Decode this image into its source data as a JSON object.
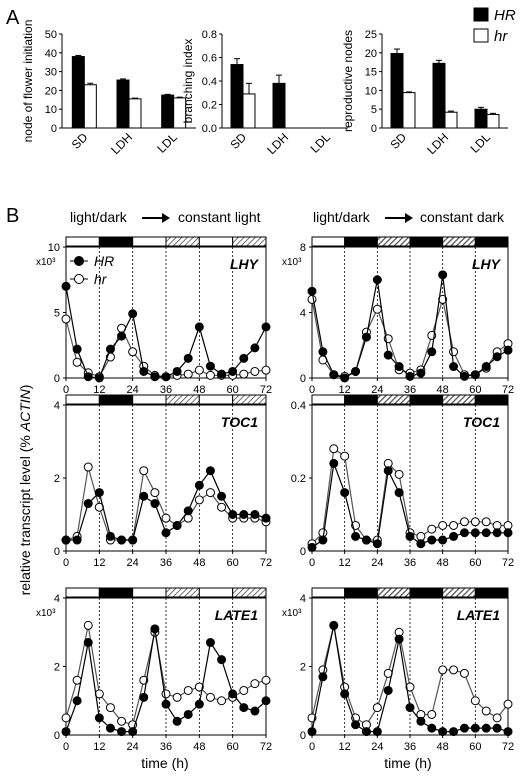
{
  "panel_labels": [
    "A",
    "B"
  ],
  "legend": [
    {
      "name": "HR",
      "color": "#000000"
    },
    {
      "name": "hr",
      "color": "#ffffff"
    }
  ],
  "line_legend": [
    "HR",
    "hr"
  ],
  "condition_titles": {
    "left_before": "light/dark",
    "left_after": "constant light",
    "right_before": "light/dark",
    "right_after": "constant dark"
  },
  "shared_ylabel_parts": [
    "relative transcript level (% ",
    "ACTIN",
    ")"
  ],
  "xlabel": "time (h)",
  "chart_data": [
    {
      "type": "bar",
      "ylabel": "node of flower initiation",
      "categories": [
        "SD",
        "LDH",
        "LDL"
      ],
      "ylim": [
        0,
        50
      ],
      "yticks": [
        "0",
        "10",
        "20",
        "30",
        "40",
        "50"
      ],
      "series": [
        {
          "name": "HR",
          "values": [
            38,
            25.5,
            17.5
          ],
          "err": [
            0.6,
            0.6,
            0.4
          ]
        },
        {
          "name": "hr",
          "values": [
            23,
            15.5,
            16
          ],
          "err": [
            0.8,
            0.4,
            0.4
          ]
        }
      ]
    },
    {
      "type": "bar",
      "ylabel": "branching index",
      "categories": [
        "SD",
        "LDH",
        "LDL"
      ],
      "ylim": [
        0,
        0.8
      ],
      "yticks": [
        "0.0",
        "0.2",
        "0.4",
        "0.6",
        "0.8"
      ],
      "series": [
        {
          "name": "HR",
          "values": [
            0.54,
            0.38,
            0
          ],
          "err": [
            0.05,
            0.07,
            0
          ]
        },
        {
          "name": "hr",
          "values": [
            0.29,
            0,
            0
          ],
          "err": [
            0.09,
            0,
            0
          ]
        }
      ]
    },
    {
      "type": "bar",
      "ylabel": "reproductive nodes",
      "categories": [
        "SD",
        "LDH",
        "LDL"
      ],
      "ylim": [
        0,
        25
      ],
      "yticks": [
        "0",
        "5",
        "10",
        "15",
        "20",
        "25"
      ],
      "series": [
        {
          "name": "HR",
          "values": [
            19.8,
            17.2,
            5.0
          ],
          "err": [
            1.2,
            0.8,
            0.5
          ]
        },
        {
          "name": "hr",
          "values": [
            9.4,
            4.2,
            3.6
          ],
          "err": [
            0.2,
            0.3,
            0.3
          ]
        }
      ]
    },
    {
      "type": "line",
      "title": "LHY",
      "multiplier": "x10³",
      "ylim": [
        0,
        10
      ],
      "yticks": [
        "0",
        "5",
        "10"
      ],
      "x": [
        0,
        4,
        8,
        12,
        16,
        20,
        24,
        28,
        32,
        36,
        40,
        44,
        48,
        52,
        56,
        60,
        64,
        68,
        72
      ],
      "xticks": [
        "0",
        "12",
        "24",
        "36",
        "48",
        "60",
        "72"
      ],
      "photoperiod": [
        "light",
        "dark",
        "light",
        "subjective-dark",
        "light",
        "subjective-dark"
      ],
      "series": [
        {
          "name": "HR",
          "values": [
            7.0,
            2.2,
            0.1,
            0.0,
            2.2,
            3.2,
            4.9,
            0.5,
            0.1,
            0.1,
            0.5,
            1.5,
            3.9,
            0.9,
            0.3,
            0.5,
            1.5,
            2.3,
            3.9
          ]
        },
        {
          "name": "hr",
          "values": [
            4.5,
            1.2,
            0.4,
            0.1,
            1.6,
            3.8,
            2.0,
            0.9,
            0.2,
            0.1,
            0.2,
            0.3,
            0.6,
            0.2,
            0.2,
            0.2,
            0.3,
            0.5,
            0.6
          ]
        }
      ]
    },
    {
      "type": "line",
      "title": "LHY",
      "multiplier": "x10³",
      "ylim": [
        0,
        8
      ],
      "yticks": [
        "0",
        "4",
        "8"
      ],
      "x": [
        0,
        4,
        8,
        12,
        16,
        20,
        24,
        28,
        32,
        36,
        40,
        44,
        48,
        52,
        56,
        60,
        64,
        68,
        72
      ],
      "xticks": [
        "0",
        "12",
        "24",
        "36",
        "48",
        "60",
        "72"
      ],
      "photoperiod": [
        "light",
        "dark",
        "subjective-light",
        "dark",
        "subjective-light",
        "dark"
      ],
      "series": [
        {
          "name": "HR",
          "values": [
            5.3,
            1.6,
            0.2,
            0.0,
            0.4,
            2.5,
            6.0,
            1.4,
            0.7,
            0.1,
            0.3,
            1.6,
            6.3,
            0.7,
            0.1,
            0.2,
            0.7,
            1.3,
            1.7
          ]
        },
        {
          "name": "hr",
          "values": [
            4.8,
            1.1,
            0.2,
            0.1,
            0.4,
            2.8,
            4.2,
            2.4,
            0.5,
            0.3,
            0.5,
            2.6,
            4.8,
            1.6,
            0.2,
            0.2,
            0.6,
            1.6,
            2.1
          ]
        }
      ]
    },
    {
      "type": "line",
      "title": "TOC1",
      "ylim": [
        0,
        4
      ],
      "yticks": [
        "0",
        "2",
        "4"
      ],
      "x": [
        0,
        4,
        8,
        12,
        16,
        20,
        24,
        28,
        32,
        36,
        40,
        44,
        48,
        52,
        56,
        60,
        64,
        68,
        72
      ],
      "xticks": [
        "0",
        "12",
        "24",
        "36",
        "48",
        "60",
        "72"
      ],
      "photoperiod": [
        "light",
        "dark",
        "light",
        "subjective-dark",
        "light",
        "subjective-dark"
      ],
      "series": [
        {
          "name": "HR",
          "values": [
            0.3,
            0.3,
            1.3,
            1.6,
            0.4,
            0.3,
            0.3,
            1.5,
            1.3,
            0.5,
            0.7,
            1.1,
            1.8,
            2.2,
            1.5,
            1.0,
            1.0,
            1.0,
            0.9
          ]
        },
        {
          "name": "hr",
          "values": [
            0.3,
            0.4,
            2.3,
            1.2,
            0.3,
            0.3,
            0.3,
            2.2,
            1.6,
            0.9,
            0.7,
            0.9,
            1.4,
            1.6,
            1.2,
            0.9,
            0.9,
            0.9,
            0.8
          ]
        }
      ]
    },
    {
      "type": "line",
      "title": "TOC1",
      "ylim": [
        0,
        0.4
      ],
      "yticks": [
        "0",
        "0.2",
        "0.4"
      ],
      "x": [
        0,
        4,
        8,
        12,
        16,
        20,
        24,
        28,
        32,
        36,
        40,
        44,
        48,
        52,
        56,
        60,
        64,
        68,
        72
      ],
      "xticks": [
        "0",
        "12",
        "24",
        "36",
        "48",
        "60",
        "72"
      ],
      "photoperiod": [
        "light",
        "dark",
        "subjective-light",
        "dark",
        "subjective-light",
        "dark"
      ],
      "series": [
        {
          "name": "HR",
          "values": [
            0.01,
            0.03,
            0.24,
            0.16,
            0.04,
            0.03,
            0.02,
            0.22,
            0.16,
            0.04,
            0.02,
            0.03,
            0.03,
            0.04,
            0.05,
            0.05,
            0.05,
            0.05,
            0.05
          ]
        },
        {
          "name": "hr",
          "values": [
            0.02,
            0.05,
            0.28,
            0.26,
            0.07,
            0.03,
            0.03,
            0.24,
            0.21,
            0.05,
            0.04,
            0.06,
            0.07,
            0.07,
            0.08,
            0.08,
            0.08,
            0.07,
            0.07
          ]
        }
      ]
    },
    {
      "type": "line",
      "title": "LATE1",
      "multiplier": "x10³",
      "ylim": [
        0,
        4
      ],
      "yticks": [
        "0",
        "2",
        "4"
      ],
      "x": [
        0,
        4,
        8,
        12,
        16,
        20,
        24,
        28,
        32,
        36,
        40,
        44,
        48,
        52,
        56,
        60,
        64,
        68,
        72
      ],
      "xticks": [
        "0",
        "12",
        "24",
        "36",
        "48",
        "60",
        "72"
      ],
      "photoperiod": [
        "light",
        "dark",
        "light",
        "subjective-dark",
        "light",
        "subjective-dark"
      ],
      "series": [
        {
          "name": "HR",
          "values": [
            0.1,
            1.0,
            2.7,
            0.5,
            0.2,
            0.1,
            0.1,
            1.1,
            3.1,
            0.9,
            0.4,
            0.6,
            0.9,
            2.7,
            2.2,
            1.2,
            0.8,
            0.7,
            1.0
          ]
        },
        {
          "name": "hr",
          "values": [
            0.5,
            1.6,
            3.2,
            1.2,
            0.8,
            0.4,
            0.3,
            1.6,
            3.0,
            1.2,
            1.1,
            1.3,
            1.4,
            1.1,
            1.0,
            1.1,
            1.3,
            1.5,
            1.6
          ]
        }
      ]
    },
    {
      "type": "line",
      "title": "LATE1",
      "multiplier": "x10³",
      "ylim": [
        0,
        4
      ],
      "yticks": [
        "0",
        "2",
        "4"
      ],
      "x": [
        0,
        4,
        8,
        12,
        16,
        20,
        24,
        28,
        32,
        36,
        40,
        44,
        48,
        52,
        56,
        60,
        64,
        68,
        72
      ],
      "xticks": [
        "0",
        "12",
        "24",
        "36",
        "48",
        "60",
        "72"
      ],
      "photoperiod": [
        "light",
        "dark",
        "subjective-light",
        "dark",
        "subjective-light",
        "dark"
      ],
      "series": [
        {
          "name": "HR",
          "values": [
            0.1,
            1.7,
            3.2,
            1.2,
            0.3,
            0.1,
            0.1,
            1.3,
            2.8,
            0.8,
            0.4,
            0.2,
            0.1,
            0.1,
            0.2,
            0.2,
            0.2,
            0.2,
            0.1
          ]
        },
        {
          "name": "hr",
          "values": [
            0.5,
            1.9,
            3.2,
            1.4,
            0.5,
            0.3,
            0.8,
            1.8,
            3.0,
            1.4,
            0.6,
            0.6,
            1.9,
            1.9,
            1.8,
            1.0,
            0.7,
            0.5,
            0.9
          ]
        }
      ]
    }
  ]
}
